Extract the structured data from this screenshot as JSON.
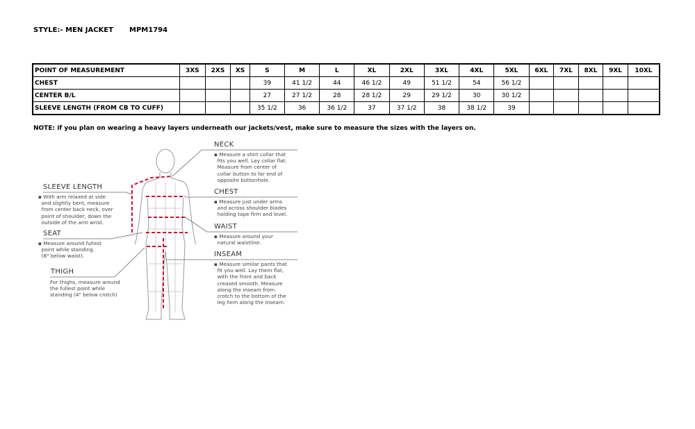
{
  "header": {
    "style_label": "STYLE:- MEN JACKET",
    "style_code": "MPM1794"
  },
  "table": {
    "columns": [
      "POINT OF MEASUREMENT",
      "3XS",
      "2XS",
      "XS",
      "S",
      "M",
      "L",
      "XL",
      "2XL",
      "3XL",
      "4XL",
      "5XL",
      "6XL",
      "7XL",
      "8XL",
      "9XL",
      "10XL"
    ],
    "rows": [
      [
        "CHEST",
        "",
        "",
        "",
        "39",
        "41 1/2",
        "44",
        "46 1/2",
        "49",
        "51 1/2",
        "54",
        "56 1/2",
        "",
        "",
        "",
        "",
        ""
      ],
      [
        "CENTER B/L",
        "",
        "",
        "",
        "27",
        "27 1/2",
        "28",
        "28 1/2",
        "29",
        "29 1/2",
        "30",
        "30 1/2",
        "",
        "",
        "",
        "",
        ""
      ],
      [
        "SLEEVE LENGTH (FROM CB TO CUFF)",
        "",
        "",
        "",
        "35 1/2",
        "36",
        "36 1/2",
        "37",
        "37 1/2",
        "38",
        "38 1/2",
        "39",
        "",
        "",
        "",
        "",
        ""
      ]
    ]
  },
  "note": "NOTE: if you plan on wearing a heavy layers underneath our jackets/vest, make sure to measure the sizes with the layers on.",
  "figure": {
    "neck": {
      "title": "NECK",
      "text": "▪ Measure a shirt collar that\n  fits you well. Lay collar flat.\n  Measure from center of\n  collar button to far end of\n  opposite buttonhole."
    },
    "chest": {
      "title": "CHEST",
      "text": "▪ Measure just under arms\n  and across shoulder blades\n  holding tape firm and level."
    },
    "waist": {
      "title": "WAIST",
      "text": "▪ Measure around your\n  natural waistline."
    },
    "inseam": {
      "title": "INSEAM",
      "text": "▪ Measure similar pants that\n  fit you well. Lay them flat,\n  with the front and back\n  creased smooth. Measure\n  along the inseam from\n  crotch to the bottom of the\n  leg hem along the inseam."
    },
    "sleeve": {
      "title": "SLEEVE LENGTH",
      "text": "▪ With arm relaxed at side\n  and slightly bent, measure\n  from center back neck, over\n  point of shoulder, down the\n  outside of the arm wrist."
    },
    "seat": {
      "title": "SEAT",
      "text": "▪ Measure around fullest\n  point while standing.\n  (8\" below waist)."
    },
    "thigh": {
      "title": "THIGH",
      "text": "For thighs, measure around\nthe fullest point while\nstanding (4\" below crotch)"
    },
    "accent": "#c8102e"
  }
}
